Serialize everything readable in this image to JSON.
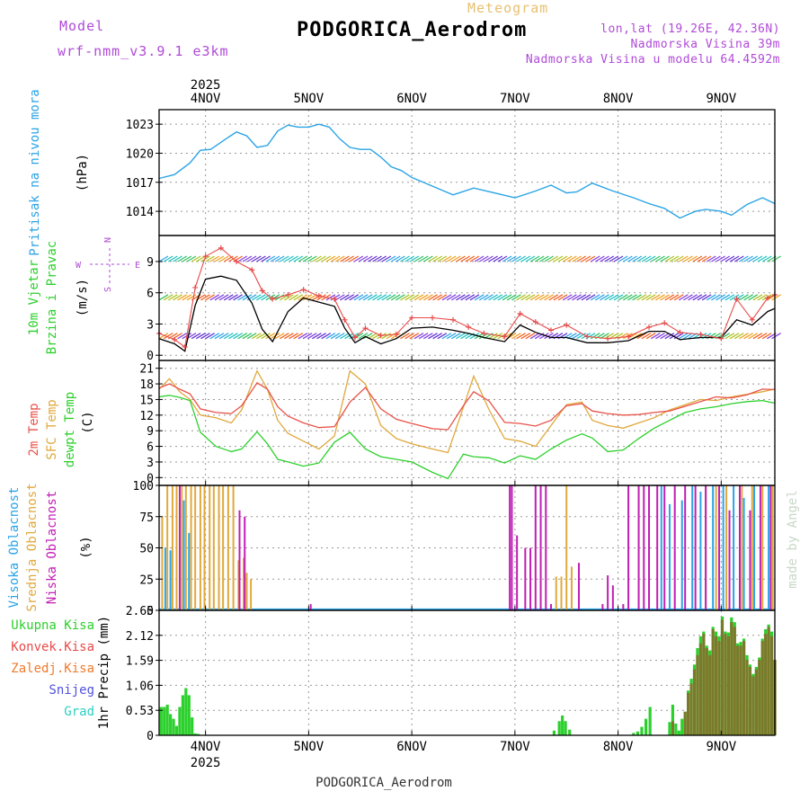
{
  "header": {
    "model_label": "Model",
    "model_name": "wrf-nmm_v3.9.1  e3km",
    "title": "PODGORICA_Aerodrom",
    "meteogram_label": "Meteogram",
    "lonlat": "lon,lat (19.26E, 42.36N)",
    "elevation": "Nadmorska Visina 39m",
    "model_elevation": "Nadmorska Visina u modelu 64.4592m",
    "footer_station": "PODGORICA_Aerodrom",
    "credit": "made by Angel"
  },
  "colors": {
    "pressure": "#2aa4e6",
    "wind_speed": "#000000",
    "wind_gust": "#e84a4a",
    "temp_2m": "#e8524a",
    "temp_sfc": "#e0a83c",
    "dewpoint": "#2cd02c",
    "cloud_high": "#2aa4e6",
    "cloud_mid": "#e0a83c",
    "cloud_low": "#c21eb4",
    "precip_total": "#2cd02c",
    "precip_conv": "#e84a4a",
    "precip_strat": "#f07a2c",
    "snow": "#5050e0",
    "hail": "#2cd0c0",
    "title": "#000000",
    "model": "#b04ad8",
    "meteogram": "#e8c070"
  },
  "chart_data": [
    {
      "type": "line",
      "id": "pressure",
      "title": "Pritisak na nivou mora",
      "ylabel": "(hPa)",
      "ylim": [
        1011.5,
        1024.5
      ],
      "yticks": [
        1014,
        1017,
        1020,
        1023
      ],
      "xlim": [
        3.55,
        9.52
      ],
      "x": [
        3.55,
        3.7,
        3.85,
        3.95,
        4.05,
        4.2,
        4.3,
        4.4,
        4.5,
        4.6,
        4.7,
        4.8,
        4.9,
        5.0,
        5.1,
        5.2,
        5.3,
        5.4,
        5.5,
        5.6,
        5.7,
        5.8,
        5.9,
        6.0,
        6.2,
        6.4,
        6.6,
        6.8,
        7.0,
        7.2,
        7.35,
        7.5,
        7.6,
        7.75,
        7.95,
        8.15,
        8.3,
        8.45,
        8.6,
        8.75,
        8.85,
        9.0,
        9.1,
        9.25,
        9.4,
        9.52
      ],
      "series": [
        {
          "name": "MSLP",
          "values": [
            1017.4,
            1017.8,
            1019.0,
            1020.3,
            1020.4,
            1021.5,
            1022.2,
            1021.8,
            1020.6,
            1020.8,
            1022.3,
            1022.9,
            1022.7,
            1022.7,
            1023.0,
            1022.7,
            1021.5,
            1020.6,
            1020.4,
            1020.4,
            1019.6,
            1018.6,
            1018.2,
            1017.5,
            1016.6,
            1015.7,
            1016.4,
            1015.9,
            1015.4,
            1016.1,
            1016.7,
            1015.9,
            1016.0,
            1016.9,
            1016.1,
            1015.4,
            1014.8,
            1014.3,
            1013.3,
            1014.0,
            1014.2,
            1014.0,
            1013.6,
            1014.7,
            1015.4,
            1014.8
          ]
        }
      ]
    },
    {
      "type": "line",
      "id": "wind",
      "title": "10m Vjetar",
      "subtitle": "Brzina i Pravac",
      "ylabel": "(m/s)",
      "legend": [
        "N",
        "E",
        "S",
        "W"
      ],
      "ylim": [
        -0.5,
        11.5
      ],
      "yticks": [
        0,
        3,
        6,
        9
      ],
      "xlim": [
        3.55,
        9.52
      ],
      "x": [
        3.55,
        3.7,
        3.8,
        3.9,
        4.0,
        4.15,
        4.3,
        4.45,
        4.55,
        4.65,
        4.8,
        4.95,
        5.1,
        5.25,
        5.35,
        5.45,
        5.55,
        5.7,
        5.85,
        6.0,
        6.2,
        6.4,
        6.55,
        6.7,
        6.9,
        7.05,
        7.2,
        7.35,
        7.5,
        7.7,
        7.9,
        8.1,
        8.3,
        8.45,
        8.6,
        8.8,
        9.0,
        9.15,
        9.3,
        9.45,
        9.52
      ],
      "series": [
        {
          "name": "Speed",
          "values": [
            1.6,
            1.1,
            0.4,
            4.8,
            7.3,
            7.6,
            7.2,
            5.0,
            2.5,
            1.3,
            4.2,
            5.5,
            5.1,
            4.7,
            2.6,
            1.2,
            1.8,
            1.1,
            1.6,
            2.6,
            2.7,
            2.4,
            2.1,
            1.7,
            1.3,
            2.9,
            2.2,
            1.7,
            1.7,
            1.2,
            1.2,
            1.4,
            2.3,
            2.3,
            1.5,
            1.7,
            1.7,
            3.4,
            2.9,
            4.2,
            4.5
          ]
        },
        {
          "name": "Gust",
          "values": [
            2.1,
            1.5,
            0.8,
            6.5,
            9.5,
            10.3,
            9.0,
            8.2,
            6.2,
            5.4,
            5.8,
            6.3,
            5.7,
            5.4,
            3.4,
            1.7,
            2.6,
            1.9,
            2.0,
            3.6,
            3.6,
            3.4,
            2.7,
            2.1,
            1.8,
            4.0,
            3.2,
            2.4,
            2.9,
            1.8,
            1.6,
            1.8,
            2.7,
            3.1,
            2.2,
            2.0,
            1.6,
            5.4,
            3.4,
            5.5,
            5.8
          ]
        }
      ]
    },
    {
      "type": "line",
      "id": "temperature",
      "title": "2m Temp",
      "subtitle": "SFC Temp",
      "subtitle2": "dewpt Temp",
      "ylabel": "(C)",
      "ylim": [
        -1.5,
        22.5
      ],
      "yticks": [
        0,
        3,
        6,
        9,
        12,
        15,
        18,
        21
      ],
      "xlim": [
        3.55,
        9.52
      ],
      "x": [
        3.55,
        3.65,
        3.75,
        3.85,
        3.95,
        4.1,
        4.25,
        4.35,
        4.5,
        4.6,
        4.7,
        4.8,
        4.95,
        5.1,
        5.25,
        5.4,
        5.55,
        5.7,
        5.85,
        6.0,
        6.2,
        6.35,
        6.5,
        6.6,
        6.75,
        6.9,
        7.05,
        7.2,
        7.35,
        7.5,
        7.65,
        7.75,
        7.9,
        8.05,
        8.2,
        8.35,
        8.5,
        8.65,
        8.8,
        8.95,
        9.1,
        9.25,
        9.4,
        9.52
      ],
      "series": [
        {
          "name": "2m Temp",
          "values": [
            17.2,
            18.0,
            17.0,
            16.1,
            13.2,
            12.5,
            12.3,
            13.8,
            18.2,
            17.0,
            13.6,
            11.8,
            10.5,
            9.6,
            9.8,
            14.5,
            17.3,
            13.2,
            11.2,
            10.4,
            9.4,
            9.2,
            13.8,
            16.5,
            14.7,
            10.6,
            10.4,
            9.9,
            11.0,
            13.8,
            14.2,
            12.8,
            12.3,
            12.0,
            12.1,
            12.5,
            12.8,
            13.7,
            14.6,
            15.5,
            15.3,
            15.9,
            17.0,
            16.9
          ]
        },
        {
          "name": "SFC Temp",
          "values": [
            17.0,
            19.0,
            16.5,
            15.0,
            12.0,
            11.5,
            10.5,
            13.0,
            20.5,
            17.0,
            11.0,
            8.5,
            7.0,
            5.5,
            8.0,
            20.5,
            18.0,
            10.0,
            7.5,
            6.5,
            5.5,
            4.8,
            13.5,
            19.5,
            13.0,
            7.5,
            7.0,
            6.0,
            10.0,
            14.0,
            14.5,
            11.0,
            10.0,
            9.5,
            10.5,
            11.5,
            13.0,
            14.0,
            15.0,
            14.8,
            15.5,
            16.0,
            16.5,
            17.0
          ]
        },
        {
          "name": "dewpt Temp",
          "values": [
            15.5,
            15.8,
            15.4,
            14.8,
            8.7,
            6.0,
            5.0,
            5.5,
            8.8,
            6.5,
            3.5,
            3.0,
            2.2,
            2.8,
            6.8,
            8.7,
            5.5,
            4.0,
            3.5,
            3.0,
            1.0,
            -0.2,
            4.5,
            4.0,
            3.8,
            2.8,
            4.2,
            3.5,
            5.5,
            7.2,
            8.4,
            7.6,
            5.0,
            5.3,
            7.5,
            9.5,
            11.0,
            12.5,
            13.2,
            13.6,
            14.2,
            14.6,
            14.8,
            14.3
          ]
        }
      ]
    },
    {
      "type": "bar",
      "id": "clouds",
      "title": "Visoka Oblacnost",
      "subtitle": "Srednja Oblacnost",
      "subtitle2": "Niska Oblacnost",
      "ylabel": "(%)",
      "ylim": [
        0,
        100
      ],
      "yticks": [
        0,
        25,
        50,
        75,
        100
      ],
      "xlim": [
        3.55,
        9.52
      ],
      "series": [
        {
          "name": "Srednja",
          "x": [
            3.58,
            3.63,
            3.68,
            3.72,
            3.77,
            3.81,
            3.86,
            3.9,
            3.95,
            3.99,
            4.04,
            4.08,
            4.13,
            4.17,
            4.22,
            4.27,
            4.32,
            4.37,
            4.4,
            4.44,
            7.4,
            7.45,
            7.5,
            7.55,
            8.85,
            8.95,
            9.05,
            9.2,
            9.3,
            9.4,
            9.5
          ],
          "values": [
            75,
            100,
            100,
            100,
            100,
            100,
            100,
            100,
            100,
            100,
            100,
            100,
            100,
            100,
            100,
            100,
            40,
            42,
            30,
            25,
            27,
            27,
            100,
            35,
            100,
            100,
            100,
            100,
            100,
            100,
            100
          ]
        },
        {
          "name": "Visoka",
          "x": [
            3.61,
            3.66,
            3.79,
            3.84,
            8.42,
            8.5,
            8.62,
            8.72,
            8.8,
            8.92,
            9.02,
            9.12,
            9.22,
            9.32,
            9.46
          ],
          "values": [
            50,
            48,
            88,
            62,
            100,
            85,
            88,
            100,
            95,
            100,
            100,
            100,
            90,
            100,
            100
          ]
        },
        {
          "name": "Niska",
          "x": [
            3.75,
            4.33,
            4.38,
            5.02,
            6.95,
            6.97,
            7.02,
            7.1,
            7.15,
            7.2,
            7.25,
            7.3,
            7.35,
            7.62,
            7.85,
            7.9,
            7.95,
            8.05,
            8.1,
            8.2,
            8.25,
            8.3,
            8.38,
            8.45,
            8.55,
            8.65,
            8.75,
            8.85,
            8.98,
            9.08,
            9.18,
            9.28,
            9.38,
            9.48
          ],
          "values": [
            100,
            80,
            75,
            5,
            100,
            100,
            60,
            50,
            50,
            100,
            100,
            100,
            5,
            38,
            5,
            28,
            20,
            5,
            100,
            100,
            100,
            100,
            100,
            100,
            100,
            100,
            100,
            100,
            100,
            80,
            100,
            80,
            100,
            100
          ]
        }
      ]
    },
    {
      "type": "bar",
      "id": "precip",
      "title": "1hr Precip",
      "ylabel": "(mm)",
      "legend": [
        "Ukupna Kisa",
        "Konvek.Kisa",
        "Zaledj.Kisa",
        "Snijeg",
        "Grad"
      ],
      "ylim": [
        0,
        2.65
      ],
      "yticks": [
        0,
        0.53,
        1.06,
        1.59,
        2.12,
        2.65
      ],
      "ytick_labels": [
        "0",
        "0.53",
        "1.06",
        "1.59",
        "2.12",
        "2.65"
      ],
      "xlim": [
        3.55,
        9.52
      ],
      "x": [
        3.57,
        3.6,
        3.63,
        3.66,
        3.69,
        3.72,
        3.75,
        3.78,
        3.81,
        3.84,
        3.87,
        3.9,
        3.93,
        7.38,
        7.43,
        7.46,
        7.49,
        7.53,
        8.15,
        8.19,
        8.23,
        8.27,
        8.31,
        8.5,
        8.53,
        8.56,
        8.59,
        8.62,
        8.65,
        8.68,
        8.71,
        8.74,
        8.77,
        8.8,
        8.83,
        8.86,
        8.89,
        8.92,
        8.95,
        8.98,
        9.01,
        9.04,
        9.07,
        9.1,
        9.13,
        9.16,
        9.19,
        9.22,
        9.25,
        9.28,
        9.31,
        9.34,
        9.37,
        9.4,
        9.43,
        9.46,
        9.49,
        9.52
      ],
      "series": [
        {
          "name": "Ukupna Kisa",
          "values": [
            0.6,
            0.6,
            0.65,
            0.45,
            0.35,
            0.2,
            0.6,
            0.85,
            1.0,
            0.85,
            0.38,
            0.04,
            0.03,
            0.1,
            0.3,
            0.42,
            0.3,
            0.12,
            0.05,
            0.08,
            0.18,
            0.35,
            0.6,
            0.28,
            0.65,
            0.25,
            0.1,
            0.35,
            0.5,
            0.95,
            1.2,
            1.5,
            1.85,
            2.1,
            2.2,
            1.9,
            1.8,
            2.3,
            2.2,
            2.1,
            2.52,
            2.2,
            2.18,
            2.5,
            2.4,
            1.95,
            1.98,
            2.05,
            1.7,
            1.5,
            1.3,
            1.45,
            1.65,
            2.05,
            2.25,
            2.35,
            2.2,
            1.6
          ]
        },
        {
          "name": "Konvek.Kisa",
          "values": [
            0,
            0,
            0,
            0,
            0,
            0,
            0,
            0,
            0,
            0,
            0,
            0,
            0,
            0,
            0,
            0,
            0,
            0,
            0,
            0,
            0,
            0,
            0,
            0,
            0.3,
            0,
            0,
            0,
            0.5,
            0.9,
            1.1,
            1.4,
            1.7,
            1.95,
            2.15,
            1.85,
            1.7,
            2.25,
            2.1,
            2.0,
            2.45,
            2.15,
            2.1,
            2.4,
            2.3,
            1.9,
            1.9,
            2.0,
            1.6,
            1.45,
            1.25,
            1.4,
            1.6,
            2.0,
            2.15,
            2.3,
            2.1,
            1.6
          ]
        }
      ]
    }
  ],
  "axes": {
    "day_ticks": [
      4,
      5,
      6,
      7,
      8,
      9
    ],
    "day_labels": [
      "4NOV",
      "5NOV",
      "6NOV",
      "7NOV",
      "8NOV",
      "9NOV"
    ],
    "year_label": "2025"
  },
  "panels": {
    "pressure": {
      "title": "Pritisak na nivou mora",
      "unit": "(hPa)"
    },
    "wind": {
      "title": "10m Vjetar",
      "subtitle": "Brzina i Pravac",
      "unit": "(m/s)"
    },
    "temperature": {
      "l1": "2m Temp",
      "l2": "SFC Temp",
      "l3": "dewpt Temp",
      "unit": "(C)"
    },
    "clouds": {
      "l1": "Visoka Oblacnost",
      "l2": "Srednja Oblacnost",
      "l3": "Niska Oblacnost",
      "unit": "(%)"
    },
    "precip": {
      "l1": "Ukupna Kisa",
      "l2": "Konvek.Kisa",
      "l3": "Zaledj.Kisa",
      "l4": "Snijeg",
      "l5": "Grad",
      "unit": "1hr Precip (mm)"
    },
    "compass": {
      "n": "N",
      "e": "E",
      "s": "S",
      "w": "W"
    }
  }
}
